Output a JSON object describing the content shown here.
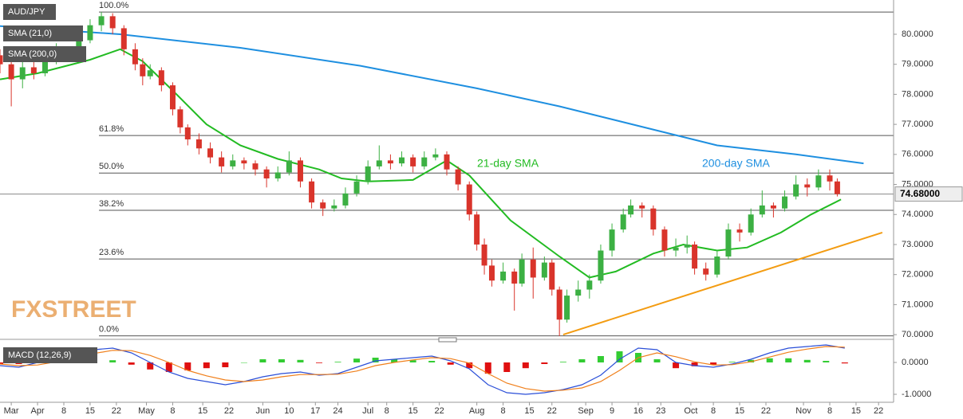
{
  "chart_data": [
    {
      "type": "candlestick",
      "title": "AUD/JPY",
      "logo": "FXSTREET",
      "xlim": [
        -10,
        228
      ],
      "xticks": [
        {
          "value": -7,
          "label": "Mar"
        },
        {
          "value": 0,
          "label": "Apr"
        },
        {
          "value": 7,
          "label": "8"
        },
        {
          "value": 14,
          "label": "15"
        },
        {
          "value": 21,
          "label": "22"
        },
        {
          "value": 29,
          "label": "May"
        },
        {
          "value": 36,
          "label": "8"
        },
        {
          "value": 44,
          "label": "15"
        },
        {
          "value": 51,
          "label": "22"
        },
        {
          "value": 60,
          "label": "Jun"
        },
        {
          "value": 67,
          "label": "10"
        },
        {
          "value": 74,
          "label": "17"
        },
        {
          "value": 80,
          "label": "24"
        },
        {
          "value": 88,
          "label": "Jul"
        },
        {
          "value": 93,
          "label": "8"
        },
        {
          "value": 100,
          "label": "15"
        },
        {
          "value": 107,
          "label": "22"
        },
        {
          "value": 117,
          "label": "Aug"
        },
        {
          "value": 124,
          "label": "8"
        },
        {
          "value": 131,
          "label": "15"
        },
        {
          "value": 137,
          "label": "22"
        },
        {
          "value": 146,
          "label": "Sep"
        },
        {
          "value": 153,
          "label": "9"
        },
        {
          "value": 160,
          "label": "16"
        },
        {
          "value": 166,
          "label": "23"
        },
        {
          "value": 174,
          "label": "Oct"
        },
        {
          "value": 180,
          "label": "8"
        },
        {
          "value": 187,
          "label": "15"
        },
        {
          "value": 194,
          "label": "22"
        },
        {
          "value": 204,
          "label": "Nov"
        },
        {
          "value": 211,
          "label": "8"
        },
        {
          "value": 218,
          "label": "15"
        },
        {
          "value": 224,
          "label": "22"
        }
      ],
      "ylim": [
        69.87,
        81.14
      ],
      "yticks": [
        {
          "value": 70,
          "label": "70.0000"
        },
        {
          "value": 71,
          "label": "71.0000"
        },
        {
          "value": 72,
          "label": "72.0000"
        },
        {
          "value": 73,
          "label": "73.0000"
        },
        {
          "value": 74,
          "label": "74.0000"
        },
        {
          "value": 75,
          "label": "75.0000"
        },
        {
          "value": 76,
          "label": "76.0000"
        },
        {
          "value": 77,
          "label": "77.0000"
        },
        {
          "value": 78,
          "label": "78.0000"
        },
        {
          "value": 79,
          "label": "79.0000"
        },
        {
          "value": 80,
          "label": "80.0000"
        }
      ],
      "last_price": {
        "value": 74.68,
        "label": "74.68000"
      },
      "up_color": "#3cb043",
      "down_color": "#d9342b",
      "candles": {
        "x": [
          -10,
          -7,
          -4,
          -1,
          2,
          5,
          8,
          11,
          14,
          17,
          20,
          23,
          26,
          28,
          30,
          33,
          36,
          38,
          40,
          43,
          46,
          49,
          52,
          55,
          58,
          61,
          64,
          67,
          70,
          73,
          76,
          79,
          82,
          85,
          88,
          91,
          94,
          97,
          100,
          103,
          106,
          109,
          112,
          115,
          117,
          119,
          121,
          124,
          127,
          129,
          132,
          135,
          137,
          139,
          141,
          144,
          147,
          150,
          153,
          156,
          158,
          161,
          164,
          167,
          170,
          173,
          175,
          178,
          181,
          184,
          187,
          190,
          193,
          196,
          199,
          202,
          205,
          208,
          211,
          213
        ],
        "open": [
          79.3,
          79.0,
          78.5,
          78.9,
          78.7,
          79.2,
          79.5,
          79.3,
          79.8,
          80.3,
          80.6,
          80.2,
          79.5,
          79.0,
          78.6,
          78.8,
          78.3,
          77.5,
          76.9,
          76.5,
          76.2,
          75.9,
          75.6,
          75.8,
          75.7,
          75.5,
          75.2,
          75.4,
          75.8,
          75.1,
          74.4,
          74.2,
          74.3,
          74.7,
          75.1,
          75.6,
          75.8,
          75.7,
          75.9,
          75.6,
          75.9,
          76.0,
          75.5,
          75.0,
          74.0,
          73.0,
          72.3,
          71.8,
          72.1,
          71.7,
          72.5,
          71.9,
          72.4,
          71.5,
          70.5,
          71.3,
          71.5,
          71.8,
          72.8,
          73.5,
          74.0,
          74.3,
          74.2,
          73.5,
          72.8,
          72.9,
          73.0,
          72.2,
          72.0,
          72.6,
          73.5,
          73.4,
          74.0,
          74.3,
          74.2,
          74.6,
          75.0,
          74.9,
          75.3,
          75.1
        ],
        "high": [
          79.5,
          79.1,
          79.1,
          79.2,
          79.4,
          79.7,
          79.6,
          80.0,
          80.5,
          80.74,
          80.7,
          80.3,
          79.7,
          79.2,
          79.0,
          78.9,
          78.4,
          77.6,
          77.0,
          76.7,
          76.4,
          76.1,
          76.0,
          75.9,
          75.8,
          75.6,
          75.6,
          76.1,
          75.9,
          75.2,
          74.5,
          74.5,
          74.9,
          75.3,
          75.8,
          76.3,
          76.0,
          76.1,
          76.0,
          76.1,
          76.2,
          76.1,
          75.6,
          75.1,
          74.1,
          73.2,
          72.5,
          72.4,
          72.2,
          72.7,
          72.9,
          72.6,
          72.5,
          71.6,
          71.5,
          71.8,
          72.0,
          73.0,
          73.7,
          74.2,
          74.5,
          74.4,
          74.3,
          73.6,
          73.2,
          73.3,
          73.1,
          72.4,
          72.8,
          73.7,
          73.7,
          74.2,
          74.8,
          74.4,
          74.8,
          75.3,
          75.2,
          75.5,
          75.5,
          75.2
        ],
        "low": [
          78.7,
          77.6,
          78.2,
          78.5,
          78.6,
          79.0,
          79.1,
          79.2,
          79.7,
          80.1,
          80.0,
          79.3,
          78.8,
          78.3,
          78.5,
          78.1,
          77.3,
          76.7,
          76.3,
          76.0,
          75.7,
          75.4,
          75.5,
          75.5,
          75.3,
          74.9,
          75.1,
          75.3,
          74.9,
          74.2,
          73.95,
          74.1,
          74.2,
          74.6,
          75.0,
          75.5,
          75.5,
          75.6,
          75.4,
          75.5,
          75.8,
          75.3,
          74.8,
          73.8,
          72.8,
          72.0,
          71.6,
          71.7,
          70.8,
          71.6,
          71.2,
          71.8,
          71.3,
          69.95,
          70.4,
          71.1,
          71.2,
          71.7,
          72.6,
          73.4,
          73.9,
          73.9,
          73.3,
          72.6,
          72.6,
          72.7,
          72.0,
          71.8,
          71.9,
          72.5,
          73.1,
          73.3,
          73.9,
          73.9,
          74.1,
          74.5,
          74.6,
          74.8,
          74.8,
          74.6
        ],
        "close": [
          79.0,
          78.5,
          78.9,
          78.7,
          79.2,
          79.5,
          79.3,
          79.8,
          80.3,
          80.6,
          80.2,
          79.5,
          79.0,
          78.6,
          78.8,
          78.3,
          77.5,
          76.9,
          76.5,
          76.2,
          75.9,
          75.6,
          75.8,
          75.7,
          75.5,
          75.2,
          75.4,
          75.8,
          75.1,
          74.4,
          74.2,
          74.3,
          74.7,
          75.1,
          75.6,
          75.8,
          75.7,
          75.9,
          75.6,
          75.9,
          76.0,
          75.5,
          75.0,
          74.0,
          73.0,
          72.3,
          71.8,
          72.1,
          71.7,
          72.5,
          71.9,
          72.4,
          71.5,
          70.5,
          71.3,
          71.5,
          71.8,
          72.8,
          73.5,
          74.0,
          74.3,
          74.2,
          73.5,
          72.8,
          72.9,
          73.0,
          72.2,
          72.0,
          72.6,
          73.5,
          73.4,
          74.0,
          74.3,
          74.2,
          74.6,
          75.0,
          74.9,
          75.3,
          75.1,
          74.68
        ]
      },
      "series": [
        {
          "name": "SMA (21,0)",
          "color": "#22bb22",
          "annotation": "21-day SMA",
          "x": [
            -10,
            0,
            14,
            22,
            28,
            37,
            45,
            54,
            64,
            75,
            81,
            88,
            100,
            109,
            115,
            126,
            139,
            147,
            154,
            164,
            172,
            181,
            189,
            198,
            206,
            214
          ],
          "values": [
            78.5,
            78.7,
            79.15,
            79.5,
            79.1,
            78.0,
            77.0,
            76.3,
            75.85,
            75.5,
            75.2,
            75.1,
            75.15,
            75.8,
            75.3,
            73.8,
            72.6,
            71.9,
            72.1,
            72.7,
            73.0,
            72.8,
            72.9,
            73.4,
            74.0,
            74.5
          ]
        },
        {
          "name": "SMA (200,0)",
          "color": "#1e8fe0",
          "annotation": "200-day SMA",
          "x": [
            -10,
            22,
            54,
            86,
            117,
            139,
            160,
            181,
            202,
            220
          ],
          "values": [
            80.27,
            80.0,
            79.55,
            78.95,
            78.2,
            77.6,
            76.95,
            76.3,
            76.0,
            75.7
          ]
        }
      ],
      "trendline": {
        "color": "#f39c12",
        "x": [
          140,
          225
        ],
        "values": [
          70.0,
          73.4
        ]
      },
      "fib_levels": [
        {
          "label": "100.0%",
          "price": 80.74
        },
        {
          "label": "61.8%",
          "price": 76.63
        },
        {
          "label": "50.0%",
          "price": 75.38
        },
        {
          "label": "38.2%",
          "price": 74.14
        },
        {
          "label": "23.6%",
          "price": 72.52
        },
        {
          "label": "0.0%",
          "price": 69.96
        }
      ]
    },
    {
      "type": "macd",
      "title": "MACD (12,26,9)",
      "xlim": [
        -10,
        228
      ],
      "ylim": [
        -1.25,
        0.675
      ],
      "yticks": [
        {
          "value": 0,
          "label": "0.0000"
        },
        {
          "value": -1,
          "label": "-1.0000"
        }
      ],
      "x": [
        -10,
        -5,
        0,
        5,
        10,
        15,
        20,
        25,
        30,
        35,
        40,
        45,
        50,
        55,
        60,
        65,
        70,
        75,
        80,
        85,
        90,
        95,
        100,
        105,
        110,
        115,
        120,
        125,
        130,
        135,
        140,
        145,
        150,
        155,
        160,
        165,
        170,
        175,
        180,
        185,
        190,
        195,
        200,
        205,
        210,
        215
      ],
      "lines": [
        {
          "color": "#2b4fd8",
          "values": [
            -0.1,
            -0.15,
            0.0,
            0.15,
            0.3,
            0.4,
            0.45,
            0.3,
            0.0,
            -0.3,
            -0.5,
            -0.6,
            -0.7,
            -0.6,
            -0.45,
            -0.35,
            -0.3,
            -0.4,
            -0.35,
            -0.15,
            0.05,
            0.1,
            0.15,
            0.2,
            0.05,
            -0.2,
            -0.7,
            -0.95,
            -1.0,
            -0.95,
            -0.85,
            -0.7,
            -0.4,
            0.1,
            0.45,
            0.4,
            0.0,
            -0.1,
            -0.15,
            -0.05,
            0.1,
            0.3,
            0.45,
            0.5,
            0.55,
            0.45
          ]
        },
        {
          "color": "#f07f1a",
          "values": [
            -0.05,
            -0.1,
            -0.08,
            0.02,
            0.15,
            0.28,
            0.38,
            0.37,
            0.22,
            0.0,
            -0.25,
            -0.42,
            -0.55,
            -0.6,
            -0.55,
            -0.45,
            -0.38,
            -0.38,
            -0.37,
            -0.27,
            -0.1,
            0.0,
            0.08,
            0.15,
            0.12,
            -0.02,
            -0.35,
            -0.65,
            -0.82,
            -0.9,
            -0.87,
            -0.8,
            -0.6,
            -0.25,
            0.15,
            0.3,
            0.18,
            0.02,
            -0.08,
            -0.07,
            0.02,
            0.17,
            0.32,
            0.42,
            0.5,
            0.48
          ]
        }
      ],
      "histogram": {
        "up_color": "#33cc33",
        "down_color": "#e01010",
        "values": [
          -0.05,
          -0.05,
          0.08,
          0.13,
          0.15,
          0.12,
          0.07,
          -0.07,
          -0.22,
          -0.3,
          -0.25,
          -0.18,
          -0.15,
          0.0,
          0.1,
          0.1,
          0.08,
          -0.02,
          0.02,
          0.12,
          0.15,
          0.1,
          0.07,
          0.05,
          -0.07,
          -0.18,
          -0.35,
          -0.3,
          -0.18,
          -0.05,
          0.02,
          0.1,
          0.2,
          0.35,
          0.3,
          0.1,
          -0.18,
          -0.12,
          -0.07,
          0.02,
          0.08,
          0.13,
          0.13,
          0.08,
          0.05,
          -0.03
        ]
      }
    }
  ]
}
